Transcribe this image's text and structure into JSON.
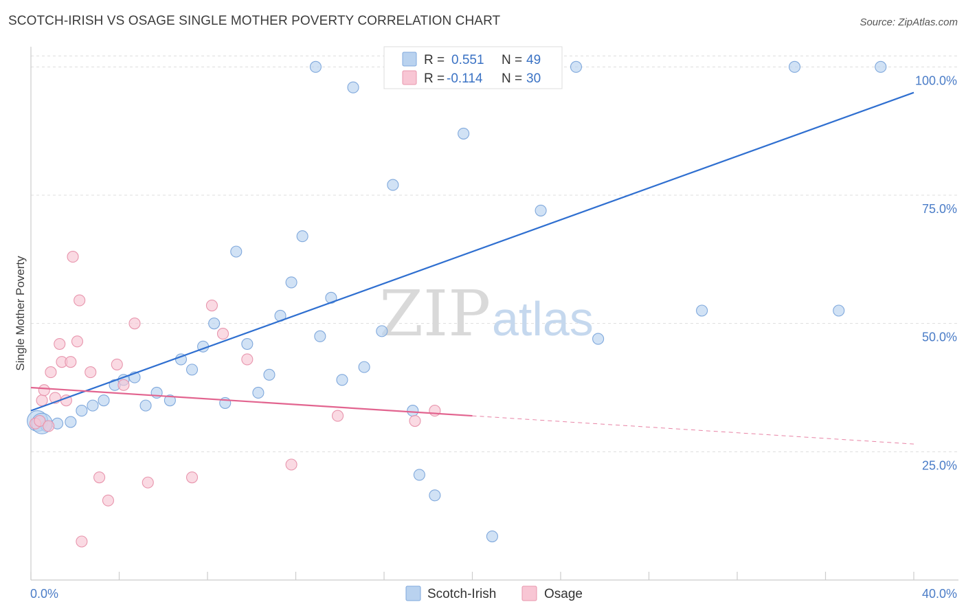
{
  "header": {
    "title": "SCOTCH-IRISH VS OSAGE SINGLE MOTHER POVERTY CORRELATION CHART",
    "source": "Source: ZipAtlas.com"
  },
  "watermark": {
    "part1": "ZIP",
    "part2": "atlas"
  },
  "colors": {
    "blue_fill": "#b9d2ef",
    "blue_stroke": "#7fa8dc",
    "blue_line": "#2f6fd0",
    "pink_fill": "#f8c6d4",
    "pink_stroke": "#e895ad",
    "pink_line": "#e2648f",
    "grid": "#dddddd",
    "axis_text": "#4a7cc7"
  },
  "stats_legend": [
    {
      "r_label": "R =",
      "r_value": "0.551",
      "n_label": "N =",
      "n_value": "49"
    },
    {
      "r_label": "R =",
      "r_value": "-0.114",
      "n_label": "N =",
      "n_value": "30"
    }
  ],
  "chart_data": {
    "type": "scatter",
    "title": "SCOTCH-IRISH VS OSAGE SINGLE MOTHER POVERTY CORRELATION CHART",
    "xlabel": "",
    "ylabel": "Single Mother Poverty",
    "xlim": [
      0,
      40
    ],
    "ylim": [
      0,
      105
    ],
    "x_tick_labels": [
      "0.0%",
      "40.0%"
    ],
    "y_ticks": [
      25,
      50,
      75,
      100
    ],
    "y_tick_labels": [
      "25.0%",
      "50.0%",
      "75.0%",
      "100.0%"
    ],
    "grid": true,
    "legend_position": "bottom-center",
    "series": [
      {
        "name": "Scotch-Irish",
        "points": [
          [
            0.3,
            31.0
          ],
          [
            0.7,
            30.0
          ],
          [
            1.2,
            30.5
          ],
          [
            1.8,
            30.8
          ],
          [
            2.3,
            33.0
          ],
          [
            2.8,
            34.0
          ],
          [
            3.3,
            35.0
          ],
          [
            3.8,
            38.0
          ],
          [
            4.2,
            39.0
          ],
          [
            4.7,
            39.5
          ],
          [
            5.2,
            34.0
          ],
          [
            5.7,
            36.5
          ],
          [
            6.3,
            35.0
          ],
          [
            6.8,
            43.0
          ],
          [
            7.3,
            41.0
          ],
          [
            7.8,
            45.5
          ],
          [
            8.3,
            50.0
          ],
          [
            8.8,
            34.5
          ],
          [
            9.3,
            64.0
          ],
          [
            9.8,
            46.0
          ],
          [
            10.3,
            36.5
          ],
          [
            10.8,
            40.0
          ],
          [
            11.3,
            51.5
          ],
          [
            11.8,
            58.0
          ],
          [
            12.3,
            67.0
          ],
          [
            12.9,
            100.0
          ],
          [
            13.1,
            47.5
          ],
          [
            13.6,
            55.0
          ],
          [
            14.1,
            39.0
          ],
          [
            14.6,
            96.0
          ],
          [
            15.1,
            41.5
          ],
          [
            15.9,
            48.5
          ],
          [
            16.4,
            77.0
          ],
          [
            17.3,
            33.0
          ],
          [
            17.6,
            20.5
          ],
          [
            18.3,
            16.5
          ],
          [
            18.7,
            100.0
          ],
          [
            19.6,
            87.0
          ],
          [
            20.9,
            8.5
          ],
          [
            21.6,
            100.0
          ],
          [
            22.0,
            100.0
          ],
          [
            23.1,
            72.0
          ],
          [
            24.7,
            100.0
          ],
          [
            25.7,
            47.0
          ],
          [
            30.4,
            52.5
          ],
          [
            34.6,
            100.0
          ],
          [
            36.6,
            52.5
          ],
          [
            38.5,
            100.0
          ],
          [
            0.5,
            30.5
          ]
        ],
        "trend": {
          "x0": 0,
          "y0": 33.0,
          "x1": 40,
          "y1": 95.0
        }
      },
      {
        "name": "Osage",
        "points": [
          [
            0.2,
            30.5
          ],
          [
            0.4,
            31.0
          ],
          [
            0.5,
            35.0
          ],
          [
            0.6,
            37.0
          ],
          [
            0.9,
            40.5
          ],
          [
            1.1,
            35.5
          ],
          [
            1.3,
            46.0
          ],
          [
            1.4,
            42.5
          ],
          [
            1.6,
            35.0
          ],
          [
            1.8,
            42.5
          ],
          [
            1.9,
            63.0
          ],
          [
            2.1,
            46.5
          ],
          [
            2.2,
            54.5
          ],
          [
            2.3,
            7.5
          ],
          [
            2.7,
            40.5
          ],
          [
            3.1,
            20.0
          ],
          [
            3.5,
            15.5
          ],
          [
            3.9,
            42.0
          ],
          [
            4.2,
            38.0
          ],
          [
            4.7,
            50.0
          ],
          [
            5.3,
            19.0
          ],
          [
            7.3,
            20.0
          ],
          [
            8.2,
            53.5
          ],
          [
            8.7,
            48.0
          ],
          [
            9.8,
            43.0
          ],
          [
            11.8,
            22.5
          ],
          [
            13.9,
            32.0
          ],
          [
            17.4,
            31.0
          ],
          [
            18.3,
            33.0
          ],
          [
            0.8,
            30.0
          ]
        ],
        "trend": {
          "x0": 0,
          "y0": 37.5,
          "x1": 20,
          "y1": 32.0
        },
        "trend_dashed": {
          "x0": 20,
          "y0": 32.0,
          "x1": 40,
          "y1": 26.5
        }
      }
    ]
  },
  "bottom_legend": [
    "Scotch-Irish",
    "Osage"
  ]
}
